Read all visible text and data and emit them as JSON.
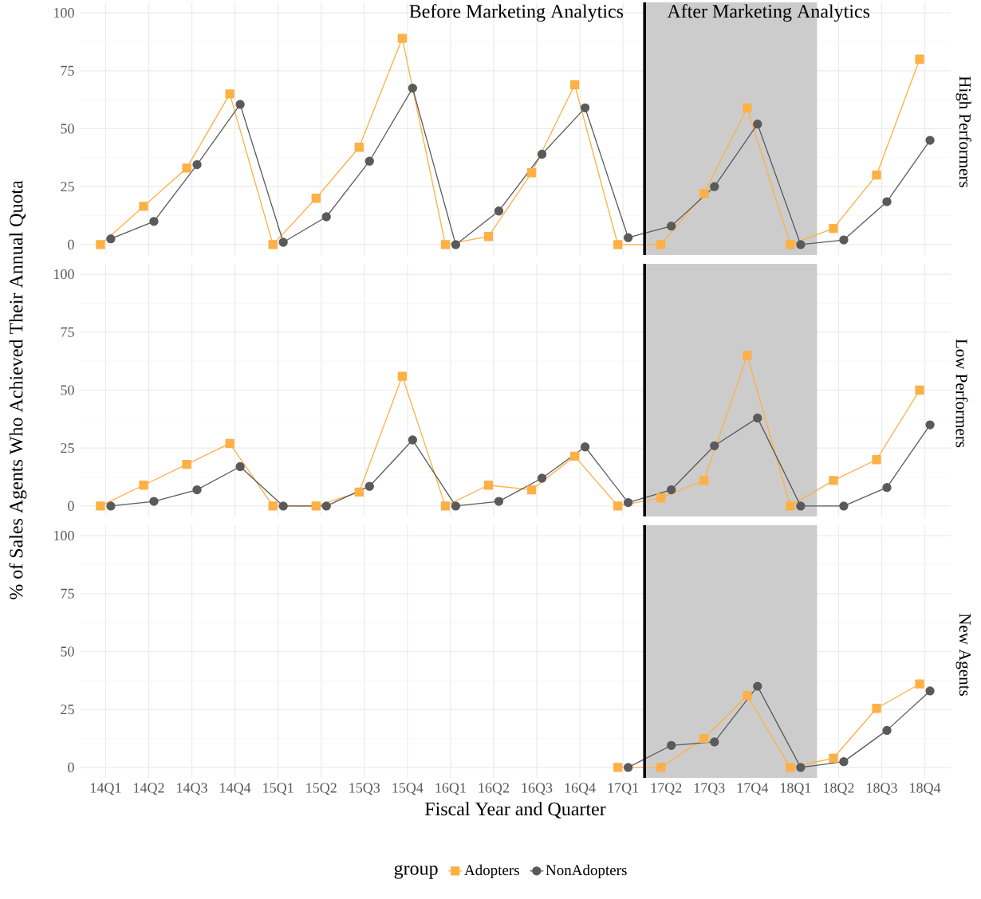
{
  "chart_data": [
    {
      "type": "line",
      "title": "High Performers",
      "categories": [
        "14Q1",
        "14Q2",
        "14Q3",
        "14Q4",
        "15Q1",
        "15Q2",
        "15Q3",
        "15Q4",
        "16Q1",
        "16Q2",
        "16Q3",
        "16Q4",
        "17Q1",
        "17Q2",
        "17Q3",
        "17Q4",
        "18Q1",
        "18Q2",
        "18Q3",
        "18Q4"
      ],
      "series": [
        {
          "color": "#fdb045",
          "marker": "square",
          "values": [
            0,
            16.5,
            33,
            65,
            0,
            20,
            42,
            89,
            0,
            3.5,
            31,
            69,
            0,
            0,
            22,
            59,
            0,
            7,
            30,
            80
          ]
        },
        {
          "color": "#5a5a5a",
          "marker": "circle",
          "values": [
            2.5,
            10,
            34.5,
            60.5,
            1,
            12,
            36,
            67.5,
            0,
            14.5,
            39,
            59,
            3,
            8,
            25,
            52,
            0,
            2,
            18.5,
            45
          ]
        }
      ],
      "ylim": [
        -4.5,
        104.5
      ],
      "yticks": [
        0,
        25,
        50,
        75,
        100
      ],
      "grid": true,
      "tick_labels": "y",
      "ref_lines": [
        {
          "axis": "x",
          "value": "17Q2",
          "label": "Before Marketing Analytics",
          "color": "#000000"
        }
      ],
      "bands": [
        {
          "axis": "x",
          "from": "17Q2",
          "to": "18Q1",
          "label": "After Marketing Analytics",
          "color": "#cccccc"
        }
      ]
    },
    {
      "type": "line",
      "title": "Low Performers",
      "ylabel": "% of Sales Agents Who Achieved Their Annual Quota",
      "categories": [
        "14Q1",
        "14Q2",
        "14Q3",
        "14Q4",
        "15Q1",
        "15Q2",
        "15Q3",
        "15Q4",
        "16Q1",
        "16Q2",
        "16Q3",
        "16Q4",
        "17Q1",
        "17Q2",
        "17Q3",
        "17Q4",
        "18Q1",
        "18Q2",
        "18Q3",
        "18Q4"
      ],
      "series": [
        {
          "color": "#fdb045",
          "marker": "square",
          "values": [
            0,
            9,
            18,
            27,
            0,
            0,
            6,
            56,
            0,
            9,
            7,
            21.5,
            0,
            3.5,
            11,
            65,
            0,
            11,
            20,
            50
          ]
        },
        {
          "color": "#5a5a5a",
          "marker": "circle",
          "values": [
            0,
            2,
            7,
            17,
            0,
            0,
            8.5,
            28.5,
            0,
            2,
            12,
            25.5,
            1.5,
            7,
            26,
            38,
            0,
            0,
            8,
            35
          ]
        }
      ],
      "ylim": [
        -4.5,
        104.5
      ],
      "yticks": [
        0,
        25,
        50,
        75,
        100
      ],
      "grid": true,
      "tick_labels": "y",
      "ref_lines": [
        {
          "axis": "x",
          "value": "17Q2",
          "color": "#000000"
        }
      ],
      "bands": [
        {
          "axis": "x",
          "from": "17Q2",
          "to": "18Q1",
          "color": "#cccccc"
        }
      ]
    },
    {
      "type": "line",
      "title": "New Agents",
      "xlabel": "Fiscal Year and Quarter",
      "legend": "bottom",
      "legend_title": "group",
      "categories": [
        "14Q1",
        "14Q2",
        "14Q3",
        "14Q4",
        "15Q1",
        "15Q2",
        "15Q3",
        "15Q4",
        "16Q1",
        "16Q2",
        "16Q3",
        "16Q4",
        "17Q1",
        "17Q2",
        "17Q3",
        "17Q4",
        "18Q1",
        "18Q2",
        "18Q3",
        "18Q4"
      ],
      "series": [
        {
          "name": "Adopters",
          "color": "#fdb045",
          "marker": "square",
          "values": [
            null,
            null,
            null,
            null,
            null,
            null,
            null,
            null,
            null,
            null,
            null,
            null,
            0,
            0,
            12.5,
            31,
            0,
            4,
            25.5,
            36
          ]
        },
        {
          "name": "NonAdopters",
          "color": "#5a5a5a",
          "marker": "circle",
          "values": [
            null,
            null,
            null,
            null,
            null,
            null,
            null,
            null,
            null,
            null,
            null,
            null,
            0,
            9.5,
            11,
            35,
            0,
            2.5,
            16,
            33
          ]
        }
      ],
      "ylim": [
        -4.5,
        104.5
      ],
      "yticks": [
        0,
        25,
        50,
        75,
        100
      ],
      "grid": true,
      "ref_lines": [
        {
          "axis": "x",
          "value": "17Q2",
          "color": "#000000"
        }
      ],
      "bands": [
        {
          "axis": "x",
          "from": "17Q2",
          "to": "18Q1",
          "color": "#cccccc"
        }
      ]
    }
  ]
}
